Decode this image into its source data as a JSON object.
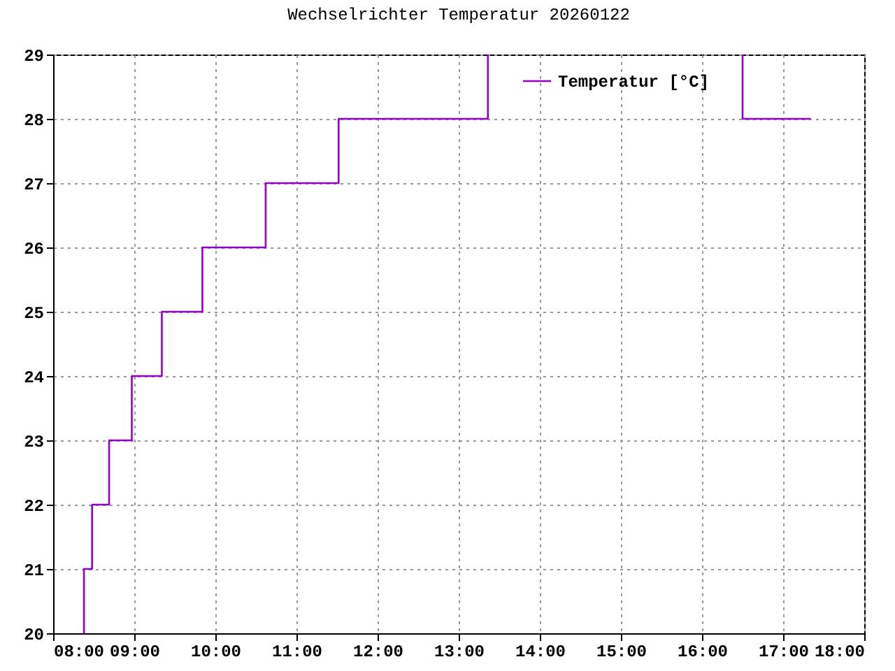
{
  "chart_data": {
    "type": "step",
    "title": "Wechselrichter Temperatur 20260122",
    "x": [
      8.38,
      8.38,
      8.48,
      8.69,
      8.97,
      9.34,
      9.84,
      10.62,
      11.52,
      13.36,
      13.4,
      16.5,
      16.5,
      17.34
    ],
    "series": [
      {
        "name": "Temperatur [°C]",
        "color": "#9400d3",
        "values": [
          20,
          21,
          22,
          23,
          24,
          25,
          26,
          27,
          28,
          29,
          null,
          29,
          28,
          28
        ]
      }
    ],
    "xlim": [
      8,
      18
    ],
    "xticks": [
      {
        "value": 8,
        "label": "08:00"
      },
      {
        "value": 9,
        "label": "09:00"
      },
      {
        "value": 10,
        "label": "10:00"
      },
      {
        "value": 11,
        "label": "11:00"
      },
      {
        "value": 12,
        "label": "12:00"
      },
      {
        "value": 13,
        "label": "13:00"
      },
      {
        "value": 14,
        "label": "14:00"
      },
      {
        "value": 15,
        "label": "15:00"
      },
      {
        "value": 16,
        "label": "16:00"
      },
      {
        "value": 17,
        "label": "17:00"
      },
      {
        "value": 18,
        "label": "18:00"
      }
    ],
    "ylim": [
      20,
      29
    ],
    "yticks": [
      20,
      21,
      22,
      23,
      24,
      25,
      26,
      27,
      28,
      29
    ],
    "grid": true,
    "legend": "top right"
  }
}
